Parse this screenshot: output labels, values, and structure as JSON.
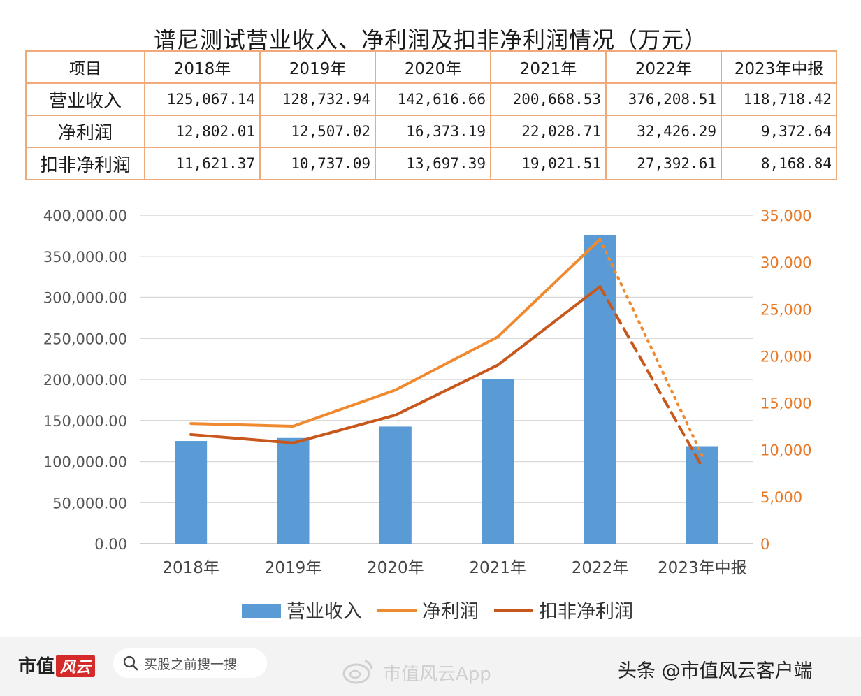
{
  "title": "谱尼测试营业收入、净利润及扣非净利润情况（万元）",
  "table": {
    "header": [
      "项目",
      "2018年",
      "2019年",
      "2020年",
      "2021年",
      "2022年",
      "2023年中报"
    ],
    "rows": [
      {
        "label": "营业收入",
        "cells": [
          "125,067.14",
          "128,732.94",
          "142,616.66",
          "200,668.53",
          "376,208.51",
          "118,718.42"
        ]
      },
      {
        "label": "净利润",
        "cells": [
          "12,802.01",
          "12,507.02",
          "16,373.19",
          "22,028.71",
          "32,426.29",
          "9,372.64"
        ]
      },
      {
        "label": "扣非净利润",
        "cells": [
          "11,621.37",
          "10,737.09",
          "13,697.39",
          "19,021.51",
          "27,392.61",
          "8,168.84"
        ]
      }
    ]
  },
  "chart_data": {
    "type": "bar",
    "categories": [
      "2018年",
      "2019年",
      "2020年",
      "2021年",
      "2022年",
      "2023年中报"
    ],
    "series": [
      {
        "name": "营业收入",
        "type": "bar",
        "axis": "left",
        "color": "#5b9bd5",
        "values": [
          125067.14,
          128732.94,
          142616.66,
          200668.53,
          376208.51,
          118718.42
        ]
      },
      {
        "name": "净利润",
        "type": "line",
        "axis": "right",
        "color": "#f08a30",
        "values": [
          12802.01,
          12507.02,
          16373.19,
          22028.71,
          32426.29,
          9372.64
        ]
      },
      {
        "name": "扣非净利润",
        "type": "line",
        "axis": "right",
        "color": "#c8571b",
        "values": [
          11621.37,
          10737.09,
          13697.39,
          19021.51,
          27392.61,
          8168.84
        ]
      }
    ],
    "y_left": {
      "min": 0,
      "max": 400000,
      "step": 50000,
      "tick_labels": [
        "0.00",
        "50,000.00",
        "100,000.00",
        "150,000.00",
        "200,000.00",
        "250,000.00",
        "300,000.00",
        "350,000.00",
        "400,000.00"
      ]
    },
    "y_right": {
      "min": 0,
      "max": 35000,
      "step": 5000,
      "color": "#e87722",
      "tick_labels": [
        "0",
        "5,000",
        "10,000",
        "15,000",
        "20,000",
        "25,000",
        "30,000",
        "35,000"
      ]
    },
    "grid": true,
    "legend": "bottom",
    "last_segment_style": "dashed"
  },
  "footer": {
    "logo_text": "市值",
    "logo_badge": "风云",
    "search_text": "买股之前搜一搜",
    "watermark": "市值风云App",
    "source": "头条 @市值风云客户端"
  }
}
